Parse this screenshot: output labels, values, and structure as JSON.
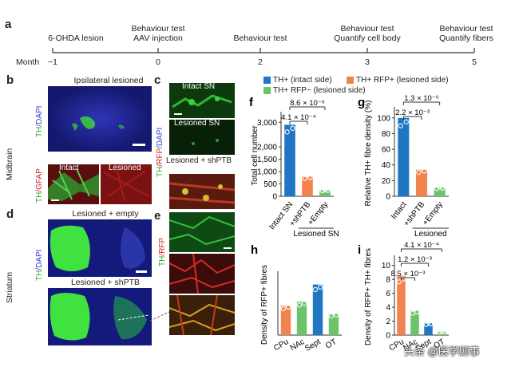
{
  "panel_a": {
    "letter": "a",
    "month_label": "Month",
    "ticks": [
      "−1",
      "0",
      "2",
      "3",
      "5"
    ],
    "events": [
      {
        "lines": [
          "6-OHDA lesion"
        ]
      },
      {
        "lines": [
          "Behaviour test",
          "AAV injection"
        ]
      },
      {
        "lines": [
          "Behaviour test"
        ]
      },
      {
        "lines": [
          "Behaviour test",
          "Quantify cell body"
        ]
      },
      {
        "lines": [
          "Behaviour test",
          "Quantify fibers"
        ]
      }
    ]
  },
  "panel_b": {
    "letter": "b",
    "region": "Midbrain",
    "title": "Ipsilateral lesioned",
    "stain_top": {
      "a": "TH",
      "b": "/DAPI"
    },
    "stain_bottom": {
      "a": "TH",
      "b": "/GFAP"
    },
    "intact": "Intact",
    "lesioned": "Lesioned"
  },
  "panel_c": {
    "letter": "c",
    "titles": [
      "Intact SN",
      "Lesioned SN",
      "Lesioned + shPTB"
    ],
    "stain": {
      "a": "TH",
      "b": "/RFP",
      "c": "/DAPI"
    }
  },
  "panel_d": {
    "letter": "d",
    "region": "Striatum",
    "titles": [
      "Lesioned + empty",
      "Lesioned + shPTB"
    ],
    "stain": {
      "a": "TH",
      "b": "/DAPI"
    }
  },
  "panel_e": {
    "letter": "e",
    "stain": {
      "a": "TH",
      "b": "/RFP"
    }
  },
  "legend": {
    "items": [
      {
        "label": "TH+ (intact side)",
        "color": "#1f77c4"
      },
      {
        "label": "TH+ RFP+ (lesioned side)",
        "color": "#f0834f"
      },
      {
        "label": "TH+ RFP− (lesioned side)",
        "color": "#6cc36c"
      }
    ]
  },
  "colors": {
    "blue": "#1f77c4",
    "orange": "#f0834f",
    "green": "#6cc36c",
    "sept": "#1f77c4"
  },
  "chart_data": [
    {
      "panel": "f",
      "type": "bar",
      "ylabel": "Total cell number",
      "yticks": [
        "0",
        "500",
        "1,000",
        "1,500",
        "2,000",
        "3,000"
      ],
      "categories": [
        "Intact SN",
        "+shPTB",
        "+Empty"
      ],
      "group_label": "Lesioned SN",
      "values": [
        2900,
        800,
        250
      ],
      "bar_colors": [
        "#1f77c4",
        "#f0834f",
        "#6cc36c"
      ],
      "stats": [
        "8.6 × 10⁻⁶",
        "4.1 × 10⁻⁴"
      ]
    },
    {
      "panel": "g",
      "type": "bar",
      "ylabel": "Relative TH+ fibre density (%)",
      "yticks": [
        "0",
        "20",
        "40",
        "60",
        "80",
        "100"
      ],
      "categories": [
        "Intact",
        "+shPTB",
        "+Empty"
      ],
      "group_label": "Lesioned",
      "values": [
        100,
        34,
        11
      ],
      "bar_colors": [
        "#1f77c4",
        "#f0834f",
        "#6cc36c"
      ],
      "stats": [
        "1.3 × 10⁻⁶",
        "2.2 × 10⁻³"
      ]
    },
    {
      "panel": "h",
      "type": "bar",
      "ylabel": "Density of RFP+ fibres",
      "categories": [
        "CPu",
        "NAc",
        "Sept",
        "OT"
      ],
      "values": [
        14.5,
        16.5,
        25,
        10.5
      ],
      "bar_colors": [
        "#f0834f",
        "#6cc36c",
        "#1f77c4",
        "#6cc36c"
      ]
    },
    {
      "panel": "i",
      "type": "bar",
      "ylabel": "Density of RFP+ TH+ fibres",
      "yticks": [
        "0",
        "2",
        "4",
        "6",
        "8",
        "10"
      ],
      "categories": [
        "CPu",
        "NAc",
        "Sept",
        "OT"
      ],
      "values": [
        8.5,
        3.5,
        1.7,
        0.5
      ],
      "bar_colors": [
        "#f0834f",
        "#6cc36c",
        "#1f77c4",
        "#6cc36c"
      ],
      "stats": [
        "4.1 × 10⁻⁴",
        "1.2 × 10⁻³",
        "8.5 × 10⁻³"
      ]
    }
  ],
  "watermark": "头条 @医学顾事"
}
